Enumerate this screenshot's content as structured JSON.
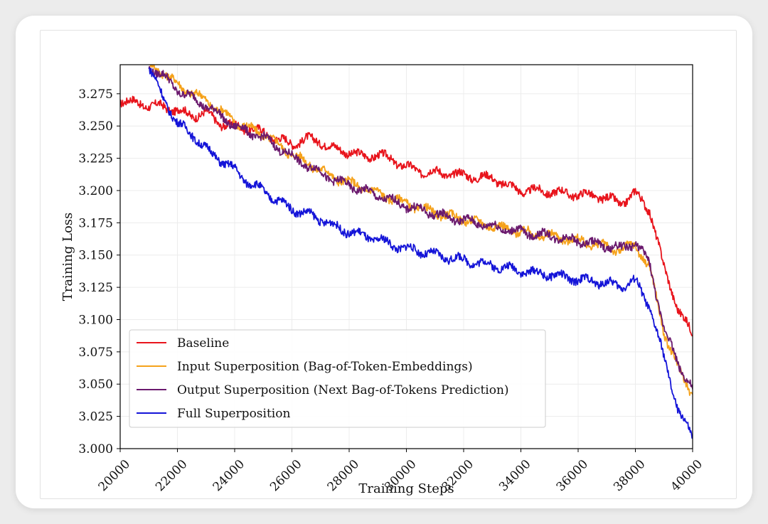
{
  "chart_data": {
    "type": "line",
    "xlabel": "Training Steps",
    "ylabel": "Training Loss",
    "xlim": [
      20000,
      40000
    ],
    "ylim": [
      3.0,
      3.2975
    ],
    "xticks": [
      "20000",
      "22000",
      "24000",
      "26000",
      "28000",
      "30000",
      "32000",
      "34000",
      "36000",
      "38000",
      "40000"
    ],
    "yticks": [
      "3.000",
      "3.025",
      "3.050",
      "3.075",
      "3.100",
      "3.125",
      "3.150",
      "3.175",
      "3.200",
      "3.225",
      "3.250",
      "3.275"
    ],
    "grid": true,
    "legend_position": "lower-left",
    "series": [
      {
        "name": "Baseline",
        "color": "#e8141c",
        "x": [
          20000,
          20500,
          21000,
          21500,
          22000,
          22500,
          23000,
          23500,
          24000,
          24500,
          25000,
          25500,
          26000,
          26500,
          27000,
          27500,
          28000,
          28500,
          29000,
          29500,
          30000,
          30500,
          31000,
          31500,
          32000,
          32500,
          33000,
          33500,
          34000,
          34500,
          35000,
          35500,
          36000,
          36500,
          37000,
          37500,
          38000,
          38500,
          39000,
          39500,
          40000
        ],
        "values": [
          3.27,
          3.268,
          3.266,
          3.265,
          3.262,
          3.258,
          3.26,
          3.252,
          3.25,
          3.248,
          3.245,
          3.24,
          3.236,
          3.24,
          3.238,
          3.232,
          3.23,
          3.226,
          3.228,
          3.224,
          3.218,
          3.215,
          3.214,
          3.213,
          3.212,
          3.21,
          3.21,
          3.204,
          3.2,
          3.2,
          3.199,
          3.198,
          3.197,
          3.196,
          3.194,
          3.19,
          3.198,
          3.185,
          3.14,
          3.108,
          3.088
        ]
      },
      {
        "name": "Input Superposition (Bag-of-Token-Embeddings)",
        "color": "#f5a21b",
        "x": [
          21000,
          21500,
          22000,
          22500,
          23000,
          23500,
          24000,
          24500,
          25000,
          25500,
          26000,
          26500,
          27000,
          27500,
          28000,
          28500,
          29000,
          29500,
          30000,
          30500,
          31000,
          31500,
          32000,
          32500,
          33000,
          33500,
          34000,
          34500,
          35000,
          35500,
          36000,
          36500,
          37000,
          37500,
          38000,
          38500,
          39000,
          39500,
          40000
        ],
        "values": [
          3.297,
          3.292,
          3.282,
          3.276,
          3.27,
          3.262,
          3.254,
          3.248,
          3.244,
          3.236,
          3.228,
          3.222,
          3.216,
          3.21,
          3.206,
          3.202,
          3.198,
          3.194,
          3.19,
          3.186,
          3.183,
          3.18,
          3.178,
          3.175,
          3.173,
          3.17,
          3.168,
          3.166,
          3.165,
          3.163,
          3.161,
          3.159,
          3.156,
          3.154,
          3.158,
          3.14,
          3.09,
          3.062,
          3.042
        ]
      },
      {
        "name": "Output Superposition (Next Bag-of-Tokens Prediction)",
        "color": "#6b1a6e",
        "x": [
          21000,
          21500,
          22000,
          22500,
          23000,
          23500,
          24000,
          24500,
          25000,
          25500,
          26000,
          26500,
          27000,
          27500,
          28000,
          28500,
          29000,
          29500,
          30000,
          30500,
          31000,
          31500,
          32000,
          32500,
          33000,
          33500,
          34000,
          34500,
          35000,
          35500,
          36000,
          36500,
          37000,
          37500,
          38000,
          38500,
          39000,
          39500,
          40000
        ],
        "values": [
          3.296,
          3.289,
          3.278,
          3.272,
          3.266,
          3.258,
          3.25,
          3.245,
          3.241,
          3.234,
          3.226,
          3.22,
          3.214,
          3.208,
          3.204,
          3.2,
          3.196,
          3.192,
          3.188,
          3.185,
          3.182,
          3.179,
          3.177,
          3.175,
          3.172,
          3.17,
          3.168,
          3.166,
          3.165,
          3.163,
          3.161,
          3.159,
          3.157,
          3.155,
          3.16,
          3.143,
          3.093,
          3.066,
          3.046
        ]
      },
      {
        "name": "Full Superposition",
        "color": "#1414d8",
        "x": [
          21000,
          21500,
          22000,
          22500,
          23000,
          23500,
          24000,
          24500,
          25000,
          25500,
          26000,
          26500,
          27000,
          27500,
          28000,
          28500,
          29000,
          29500,
          30000,
          30500,
          31000,
          31500,
          32000,
          32500,
          33000,
          33500,
          34000,
          34500,
          35000,
          35500,
          36000,
          36500,
          37000,
          37500,
          38000,
          38500,
          39000,
          39500,
          40000
        ],
        "values": [
          3.296,
          3.272,
          3.252,
          3.244,
          3.232,
          3.224,
          3.216,
          3.206,
          3.2,
          3.192,
          3.186,
          3.182,
          3.178,
          3.172,
          3.168,
          3.165,
          3.162,
          3.158,
          3.155,
          3.153,
          3.15,
          3.148,
          3.146,
          3.144,
          3.142,
          3.14,
          3.138,
          3.136,
          3.135,
          3.133,
          3.131,
          3.13,
          3.128,
          3.126,
          3.13,
          3.11,
          3.07,
          3.03,
          3.008
        ]
      }
    ]
  }
}
